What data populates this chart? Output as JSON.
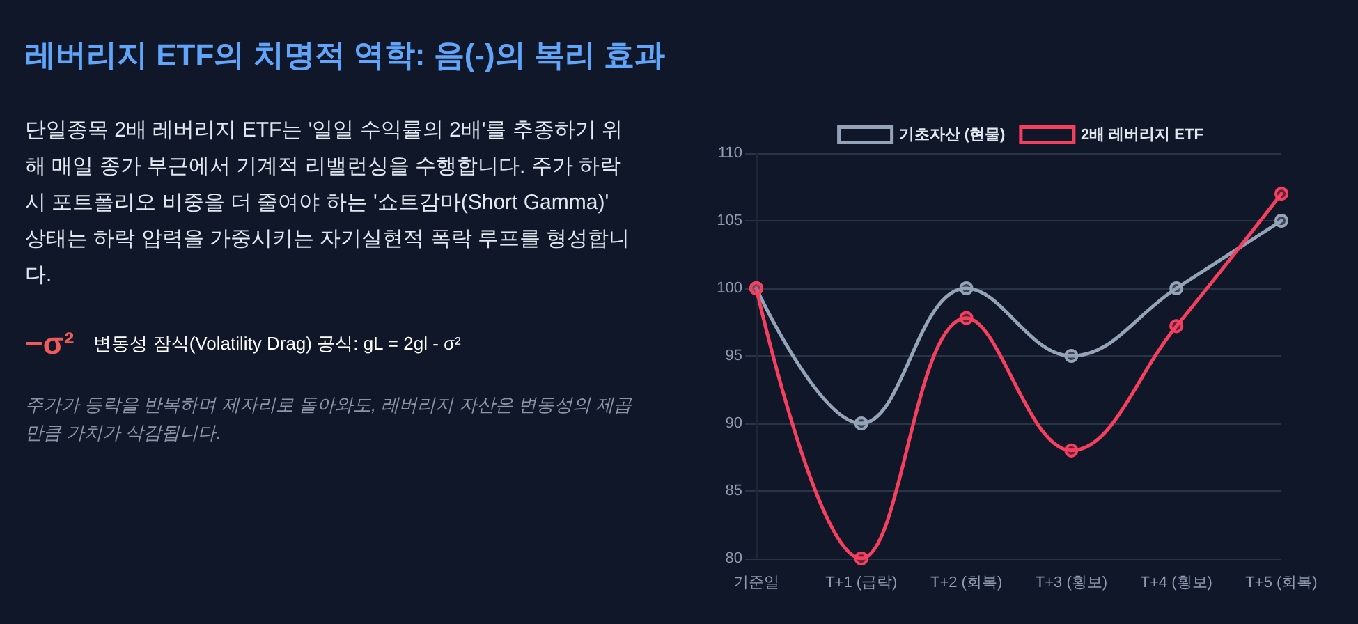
{
  "chart_data": {
    "type": "line",
    "title": "레버리지 ETF의 치명적 역학: 음(-)의 복리 효과",
    "subtitle": "단일종목 2배 레버리지 ETF는 '일일 수익률의 2배'를 추종하기 위해 매일 종가 부근에서 기계적 리밸런싱을 수행합니다. 주가 하락 시 포트폴리오 비중을 더 줄여야 하는 '쇼트감마(Short Gamma)' 상태는 하락 압력을 가중시키는 자기실현적 폭락 루프를 형성합니다.",
    "annotations": [
      "−σ²",
      "변동성 잠식(Volatility Drag) 공식: gL = 2gl - σ²",
      "주가가 등락을 반복하며 제자리로 돌아와도, 레버리지 자산은 변동성의 제곱 만큼 가치가 삭감됩니다."
    ],
    "categories": [
      "기준일",
      "T+1 (급락)",
      "T+2 (회복)",
      "T+3 (횡보)",
      "T+4 (횡보)",
      "T+5 (회복)"
    ],
    "series": [
      {
        "name": "기초자산 (현물)",
        "color": "#94a3b8",
        "values": [
          100,
          90,
          100,
          95,
          100,
          105
        ]
      },
      {
        "name": "2배 레버리지 ETF",
        "color": "#f43f5e",
        "values": [
          100,
          80,
          97.8,
          88,
          97.2,
          107
        ]
      }
    ],
    "ylim": [
      80,
      110
    ],
    "yticks": [
      80,
      85,
      90,
      95,
      100,
      105,
      110
    ],
    "grid": "y",
    "legend": "top",
    "marker": "circle",
    "line_style": "solid"
  }
}
